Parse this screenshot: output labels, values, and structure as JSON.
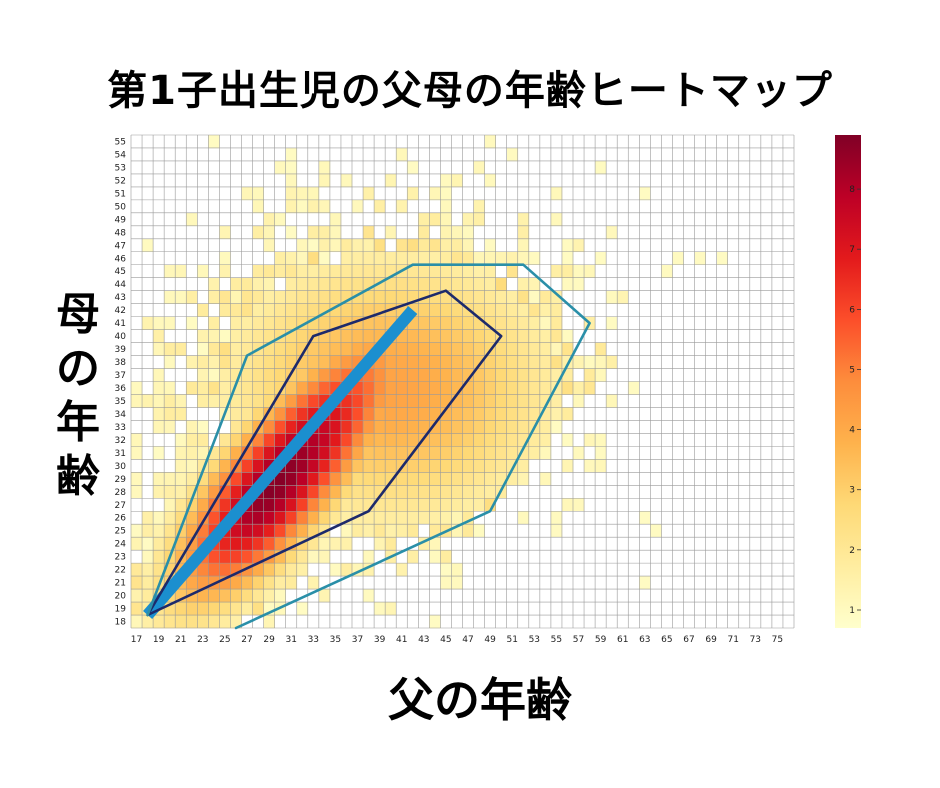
{
  "title": "第1子出生児の父母の年齢ヒートマップ",
  "chart_data": {
    "type": "heatmap",
    "title": "第1子出生児の父母の年齢ヒートマップ",
    "xlabel": "父の年齢",
    "ylabel": "母の年齢",
    "x_range": [
      17,
      76
    ],
    "y_range": [
      18,
      55
    ],
    "x_tick_labels": [
      17,
      19,
      21,
      23,
      25,
      27,
      29,
      31,
      33,
      35,
      37,
      39,
      41,
      43,
      45,
      47,
      49,
      51,
      53,
      55,
      57,
      59,
      61,
      63,
      65,
      67,
      69,
      71,
      73,
      75
    ],
    "y_tick_labels": [
      18,
      19,
      20,
      21,
      22,
      23,
      24,
      25,
      26,
      27,
      28,
      29,
      30,
      31,
      32,
      33,
      34,
      35,
      36,
      37,
      38,
      39,
      40,
      41,
      42,
      43,
      44,
      45,
      46,
      47,
      48,
      49,
      50,
      51,
      52,
      53,
      54,
      55
    ],
    "colorbar": {
      "min": 0.7,
      "max": 8.9,
      "ticks": [
        1,
        2,
        3,
        4,
        5,
        6,
        7,
        8
      ],
      "colormap": "YlOrRd"
    },
    "peak": {
      "father_age": 30,
      "mother_age": 29,
      "value": 8.8
    },
    "grid": true,
    "overlays": [
      {
        "name": "trend-line",
        "color": "#1b8fcf",
        "points": [
          [
            18,
            18.5
          ],
          [
            42,
            42
          ]
        ]
      },
      {
        "name": "inner-contour",
        "color": "#1d2a6b",
        "points": [
          [
            18,
            18.5
          ],
          [
            33,
            40
          ],
          [
            45,
            43.5
          ],
          [
            50,
            40
          ],
          [
            38,
            26.5
          ],
          [
            18,
            18.5
          ]
        ]
      },
      {
        "name": "outer-contour",
        "color": "#2a8fa8",
        "points": [
          [
            26,
            17.5
          ],
          [
            49,
            26.5
          ],
          [
            58,
            41
          ],
          [
            52,
            45.5
          ],
          [
            42,
            45.5
          ],
          [
            27,
            38.5
          ],
          [
            18,
            18.5
          ]
        ]
      }
    ]
  }
}
